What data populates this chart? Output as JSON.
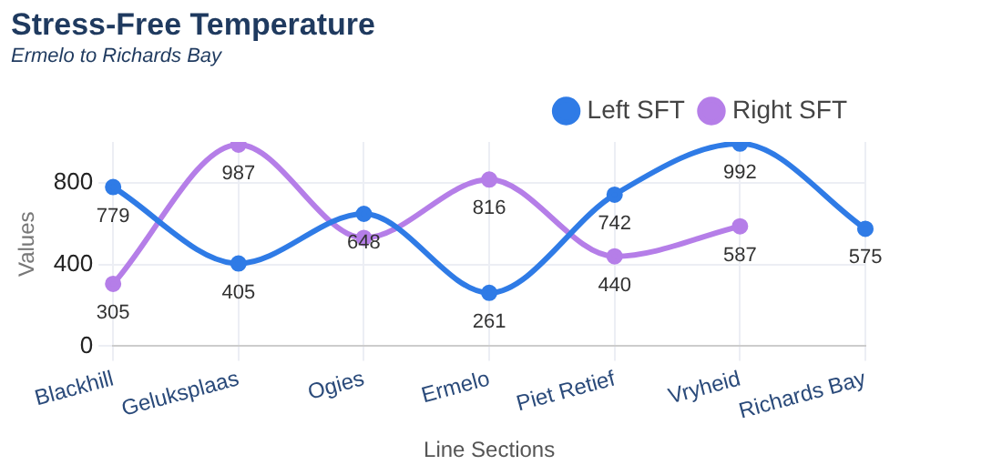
{
  "chart_data": {
    "type": "line",
    "title": "Stress-Free Temperature",
    "subtitle": "Ermelo to Richards Bay",
    "xlabel": "Line Sections",
    "ylabel": "Values",
    "categories": [
      "Blackhill",
      "Geluksplaas",
      "Ogies",
      "Ermelo",
      "Piet Retief",
      "Vryheid",
      "Richards Bay"
    ],
    "series": [
      {
        "name": "Left SFT",
        "color": "#2f7be6",
        "values": [
          779,
          405,
          648,
          261,
          742,
          992,
          575
        ],
        "value_labels": [
          "779",
          "405",
          "648",
          "261",
          "742",
          "992",
          "575"
        ]
      },
      {
        "name": "Right SFT",
        "color": "#b57ee8",
        "values": [
          305,
          987,
          530,
          816,
          440,
          587,
          null
        ],
        "value_labels": [
          "305",
          "987",
          null,
          "816",
          "440",
          "587",
          null
        ]
      }
    ],
    "ylim": [
      0,
      1000
    ],
    "yticks": [
      0,
      400,
      800
    ],
    "grid": true,
    "legend": "top right",
    "marker": "circle",
    "line_style": "solid"
  }
}
